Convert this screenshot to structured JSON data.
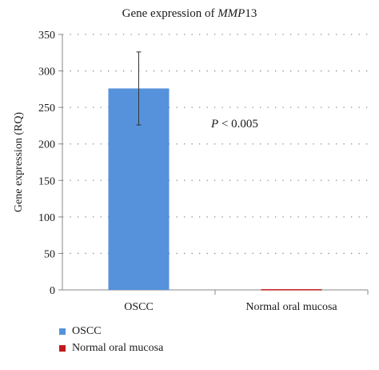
{
  "chart_data": {
    "type": "bar",
    "title_prefix": "Gene expression of ",
    "title_gene": "MMP",
    "title_suffix": "13",
    "ylabel": "Gene expression (RQ)",
    "categories": [
      "OSCC",
      "Normal oral mucosa"
    ],
    "values": [
      276,
      1
    ],
    "errors": [
      50,
      0
    ],
    "colors": [
      "#5592DB",
      "#C0191D"
    ],
    "ylim": [
      0,
      350
    ],
    "yticks": [
      0,
      50,
      100,
      150,
      200,
      250,
      300,
      350
    ],
    "grid": true,
    "annotation_p": "P",
    "annotation_rest": " < 0.005",
    "legend": [
      "OSCC",
      "Normal oral mucosa"
    ],
    "legend_position": "bottom-left"
  }
}
